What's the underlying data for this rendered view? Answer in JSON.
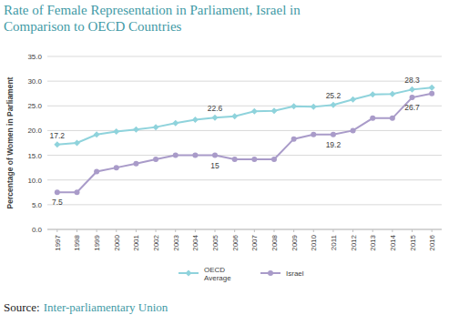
{
  "chart_data": {
    "type": "line",
    "title": "Rate of Female Representation in Parliament, Israel in Comparison to OECD Countries",
    "y_label": "Percentage of Women in Parliament",
    "categories": [
      "1997",
      "1998",
      "1999",
      "2000",
      "2001",
      "2002",
      "2003",
      "2004",
      "2005",
      "2006",
      "2007",
      "2008",
      "2009",
      "2010",
      "2011",
      "2012",
      "2013",
      "2014",
      "2015",
      "2016"
    ],
    "series": [
      {
        "name": "OECD Average",
        "color": "#8fd3dc",
        "marker": "diamond",
        "values": [
          17.2,
          17.5,
          19.2,
          19.8,
          20.2,
          20.7,
          21.5,
          22.2,
          22.6,
          22.9,
          23.9,
          24.0,
          24.9,
          24.8,
          25.2,
          26.3,
          27.3,
          27.4,
          28.3,
          28.7
        ],
        "value_labels": [
          "17.2",
          null,
          null,
          null,
          null,
          null,
          null,
          null,
          "22.6",
          null,
          null,
          null,
          null,
          null,
          "25.2",
          null,
          null,
          null,
          "28.3",
          null
        ]
      },
      {
        "name": "Israel",
        "color": "#a99bc9",
        "marker": "circle",
        "values": [
          7.5,
          7.5,
          11.7,
          12.5,
          13.3,
          14.2,
          15.0,
          15.0,
          15.0,
          14.2,
          14.2,
          14.2,
          18.3,
          19.2,
          19.2,
          20.0,
          22.5,
          22.5,
          26.7,
          27.5
        ],
        "value_labels": [
          "7.5",
          null,
          null,
          null,
          null,
          null,
          null,
          null,
          "15",
          null,
          null,
          null,
          null,
          null,
          "19.2",
          null,
          null,
          null,
          "26.7",
          null
        ]
      }
    ],
    "ylim": [
      0,
      35
    ],
    "yticks": [
      {
        "value": 0,
        "label": "0.0"
      },
      {
        "value": 5,
        "label": "5.0"
      },
      {
        "value": 10,
        "label": "10.0"
      },
      {
        "value": 15,
        "label": "15.0"
      },
      {
        "value": 20,
        "label": "20.0"
      },
      {
        "value": 25,
        "label": "25.0"
      },
      {
        "value": 30,
        "label": "30.0"
      },
      {
        "value": 35,
        "label": "35.0"
      }
    ],
    "grid": true,
    "legend": "bottom",
    "source": {
      "label": "Source:",
      "text": "Inter-parliamentary Union"
    }
  }
}
